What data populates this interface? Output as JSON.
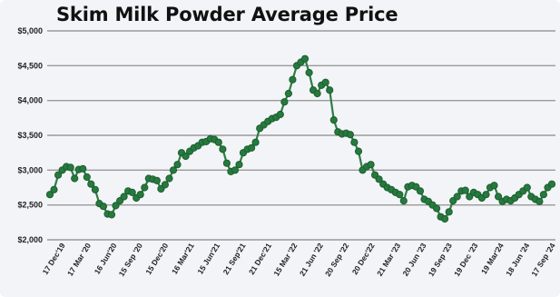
{
  "chart_data": {
    "type": "line",
    "title": "Skim Milk Powder Average Price",
    "xlabel": "",
    "ylabel": "",
    "ylim": [
      2000,
      5000
    ],
    "y_ticks": [
      "$2,000",
      "$2,500",
      "$3,000",
      "$3,500",
      "$4,000",
      "$4,500",
      "$5,000"
    ],
    "y_tick_values": [
      2000,
      2500,
      3000,
      3500,
      4000,
      4500,
      5000
    ],
    "x_ticks": [
      "17 Dec'19",
      "17 Mar '20",
      "16 Jun'20",
      "15 Sep '20",
      "15 Dec'20",
      "16 Mar'21",
      "15 Jun'21",
      "21 Sep'21",
      "21 Dec'21",
      "15 Mar '22",
      "21 Jun '22",
      "20 Sep '22",
      "20 Dec'22",
      "21 Mar '23",
      "20 Jun '23",
      "19 Sep '23",
      "19 Dec '23",
      "19 Mar'24",
      "18 Jun '24",
      "17 Sep '24"
    ],
    "grid": true,
    "legend": "none",
    "line_color": "#2f7d45",
    "marker_color": "#267a3e",
    "marker_edge": "#1d5e30",
    "series": [
      {
        "values": [
          2650,
          2720,
          2930,
          3000,
          3050,
          3040,
          2880,
          3010,
          3020,
          2900,
          2800,
          2720,
          2520,
          2480,
          2370,
          2360,
          2490,
          2560,
          2620,
          2700,
          2680,
          2600,
          2650,
          2750,
          2880,
          2870,
          2850,
          2730,
          2790,
          2880,
          3000,
          3080,
          3250,
          3200,
          3270,
          3320,
          3350,
          3400,
          3410,
          3450,
          3440,
          3400,
          3300,
          3100,
          2980,
          3000,
          3080,
          3250,
          3300,
          3320,
          3400,
          3600,
          3650,
          3700,
          3740,
          3760,
          3800,
          3980,
          4100,
          4300,
          4500,
          4550,
          4600,
          4400,
          4150,
          4100,
          4220,
          4260,
          4150,
          3720,
          3550,
          3520,
          3530,
          3510,
          3400,
          3270,
          3000,
          3050,
          3080,
          2930,
          2870,
          2800,
          2750,
          2720,
          2680,
          2650,
          2560,
          2760,
          2780,
          2760,
          2700,
          2580,
          2550,
          2500,
          2450,
          2330,
          2300,
          2400,
          2560,
          2620,
          2700,
          2710,
          2620,
          2680,
          2650,
          2600,
          2650,
          2750,
          2780,
          2620,
          2550,
          2580,
          2560,
          2600,
          2650,
          2700,
          2750,
          2620,
          2580,
          2550,
          2650,
          2750,
          2800
        ]
      }
    ]
  }
}
